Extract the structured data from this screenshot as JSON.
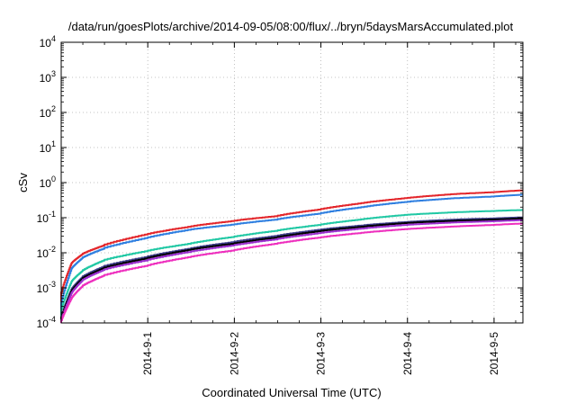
{
  "chart_data": {
    "type": "line",
    "title": "/data/run/goesPlots/archive/2014-09-05/08:00/flux/../bryn/5daysMarsAccumulated.plot",
    "xlabel": "Coordinated Universal Time (UTC)",
    "ylabel": "cSv",
    "yscale": "log",
    "xlim": [
      "2014-08-31 00:00",
      "2014-09-05 08:00"
    ],
    "ylim": [
      0.0001,
      10000
    ],
    "grid": true,
    "x_ticks": [
      "2014-9-1",
      "2014-9-2",
      "2014-9-3",
      "2014-9-4",
      "2014-9-5"
    ],
    "y_ticks": [
      {
        "value": 0.0001,
        "base": "10",
        "exp": "-4"
      },
      {
        "value": 0.001,
        "base": "10",
        "exp": "-3"
      },
      {
        "value": 0.01,
        "base": "10",
        "exp": "-2"
      },
      {
        "value": 0.1,
        "base": "10",
        "exp": "-1"
      },
      {
        "value": 1,
        "base": "10",
        "exp": "0"
      },
      {
        "value": 10,
        "base": "10",
        "exp": "1"
      },
      {
        "value": 100,
        "base": "10",
        "exp": "2"
      },
      {
        "value": 1000,
        "base": "10",
        "exp": "3"
      },
      {
        "value": 10000,
        "base": "10",
        "exp": "4"
      }
    ],
    "x": [
      "2014-08-31 00:00",
      "2014-08-31 03:00",
      "2014-08-31 06:00",
      "2014-08-31 12:00",
      "2014-09-01 00:00",
      "2014-09-01 12:00",
      "2014-09-02 00:00",
      "2014-09-02 12:00",
      "2014-09-03 00:00",
      "2014-09-03 12:00",
      "2014-09-04 00:00",
      "2014-09-04 12:00",
      "2014-09-05 00:00",
      "2014-09-05 08:00"
    ],
    "series": [
      {
        "color": "#e3262b",
        "values": [
          0.0006,
          0.005,
          0.009,
          0.016,
          0.033,
          0.055,
          0.08,
          0.11,
          0.17,
          0.26,
          0.36,
          0.46,
          0.53,
          0.6
        ]
      },
      {
        "color": "#2f7fe0",
        "values": [
          0.0003,
          0.0035,
          0.007,
          0.013,
          0.026,
          0.045,
          0.063,
          0.088,
          0.13,
          0.2,
          0.28,
          0.35,
          0.4,
          0.45
        ]
      },
      {
        "color": "#20c8a4",
        "values": [
          0.0002,
          0.0015,
          0.003,
          0.006,
          0.011,
          0.018,
          0.028,
          0.042,
          0.062,
          0.09,
          0.12,
          0.14,
          0.155,
          0.165
        ]
      },
      {
        "color": "#3d3d8a",
        "values": [
          0.00012,
          0.0009,
          0.002,
          0.004,
          0.0075,
          0.013,
          0.02,
          0.03,
          0.045,
          0.06,
          0.075,
          0.087,
          0.095,
          0.102
        ]
      },
      {
        "color": "#000000",
        "values": [
          0.00012,
          0.0008,
          0.0018,
          0.0036,
          0.0068,
          0.012,
          0.018,
          0.027,
          0.041,
          0.055,
          0.07,
          0.08,
          0.088,
          0.094
        ]
      },
      {
        "color": "#9b30d0",
        "values": [
          0.0001,
          0.0007,
          0.0016,
          0.0032,
          0.006,
          0.0105,
          0.016,
          0.024,
          0.036,
          0.049,
          0.062,
          0.072,
          0.079,
          0.085
        ]
      },
      {
        "color": "#ee2fbe",
        "values": [
          0.0001,
          0.0005,
          0.0011,
          0.0022,
          0.0042,
          0.0075,
          0.0115,
          0.018,
          0.027,
          0.037,
          0.047,
          0.055,
          0.062,
          0.068
        ]
      }
    ]
  }
}
